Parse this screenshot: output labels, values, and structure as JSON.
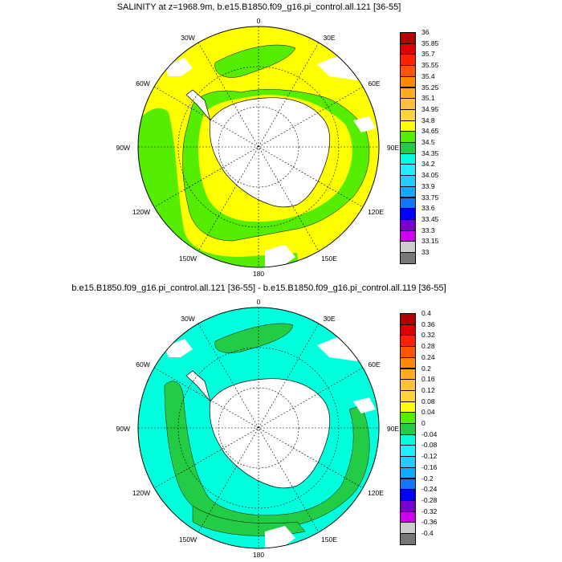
{
  "panels": [
    {
      "title": "SALINITY at z=1968.9m, b.e15.B1850.f09_g16.pi_control.all.121 [36-55]",
      "lon_labels": {
        "n": "0",
        "ne": "30E",
        "ene": "60E",
        "e": "90E",
        "ese": "120E",
        "sse": "150E",
        "s": "180",
        "ssw": "150W",
        "wsw": "120W",
        "w": "90W",
        "wnw": "60W",
        "nnw": "30W"
      },
      "colorbar": {
        "labels": [
          "36",
          "35.85",
          "35.7",
          "35.55",
          "35.4",
          "35.25",
          "35.1",
          "34.95",
          "34.8",
          "34.65",
          "34.5",
          "34.35",
          "34.2",
          "34.05",
          "33.9",
          "33.75",
          "33.6",
          "33.45",
          "33.3",
          "33.15",
          "33"
        ],
        "colors": [
          "#b30000",
          "#e00000",
          "#ff2200",
          "#ff5500",
          "#ff8800",
          "#ffaa22",
          "#ffc040",
          "#ffd33a",
          "#ffff00",
          "#55ee00",
          "#22cc44",
          "#00ffdd",
          "#22eeff",
          "#22ccff",
          "#11aaff",
          "#1177ff",
          "#0000ff",
          "#7700cc",
          "#cc00ee",
          "#cccccc",
          "#777777"
        ]
      },
      "fields": {
        "ocean_base": "#ffff00",
        "band": "#55ee00",
        "land": "#ffffff"
      }
    },
    {
      "title": "b.e15.B1850.f09_g16.pi_control.all.121 [36-55] - b.e15.B1850.f09_g16.pi_control.all.119 [36-55]",
      "lon_labels": {
        "n": "0",
        "ne": "30E",
        "ene": "60E",
        "e": "90E",
        "ese": "120E",
        "sse": "150E",
        "s": "180",
        "ssw": "150W",
        "wsw": "120W",
        "w": "90W",
        "wnw": "60W",
        "nnw": "30W"
      },
      "colorbar": {
        "labels": [
          "0.4",
          "0.36",
          "0.32",
          "0.28",
          "0.24",
          "0.2",
          "0.16",
          "0.12",
          "0.08",
          "0.04",
          "0",
          "-0.04",
          "-0.08",
          "-0.12",
          "-0.16",
          "-0.2",
          "-0.24",
          "-0.28",
          "-0.32",
          "-0.36",
          "-0.4"
        ],
        "colors": [
          "#b30000",
          "#e00000",
          "#ff2200",
          "#ff5500",
          "#ff8800",
          "#ffaa22",
          "#ffc040",
          "#ffd33a",
          "#ffff00",
          "#55ee00",
          "#22cc44",
          "#00ffdd",
          "#22eeff",
          "#22ccff",
          "#11aaff",
          "#1177ff",
          "#0000ff",
          "#7700cc",
          "#cc00ee",
          "#cccccc",
          "#777777"
        ]
      },
      "fields": {
        "ocean_base": "#00ffdd",
        "band": "#22cc44",
        "land": "#ffffff"
      }
    }
  ]
}
